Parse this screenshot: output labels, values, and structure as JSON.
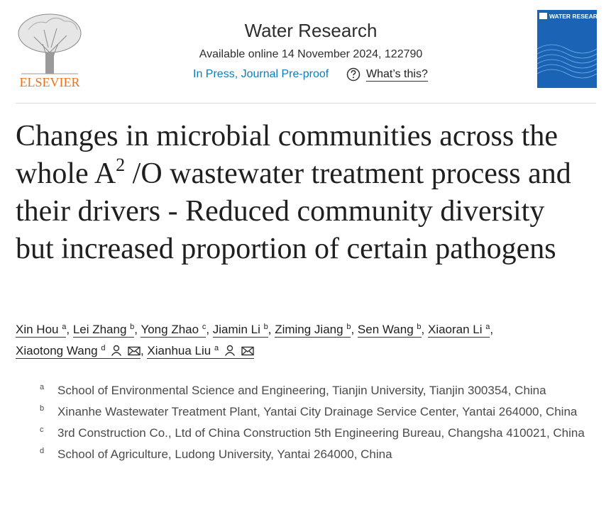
{
  "header": {
    "publisher": "ELSEVIER",
    "journal": "Water Research",
    "availability": "Available online 14 November 2024, 122790",
    "status": "In Press, Journal Pre-proof",
    "help": "What’s this?",
    "cover_title": "WATER RESEARCH"
  },
  "title": {
    "before": "Changes in microbial communities across the whole A",
    "superscript": "2",
    "after": " /O wastewater treatment process and their drivers - Reduced community diversity but increased proportion of certain pathogens"
  },
  "author_separator": ",",
  "authors": [
    {
      "name": "Xin Hou",
      "affiliation": "a"
    },
    {
      "name": "Lei Zhang",
      "affiliation": "b"
    },
    {
      "name": "Yong Zhao",
      "affiliation": "c"
    },
    {
      "name": "Jiamin Li",
      "affiliation": "b"
    },
    {
      "name": "Ziming Jiang",
      "affiliation": "b"
    },
    {
      "name": "Sen Wang",
      "affiliation": "b"
    },
    {
      "name": "Xiaoran Li",
      "affiliation": "a"
    },
    {
      "name": "Xiaotong Wang",
      "affiliation": "d"
    },
    {
      "name": "Xianhua Liu",
      "affiliation": "a"
    }
  ],
  "affiliations": [
    {
      "label": "a",
      "text": "School of Environmental Science and Engineering, Tianjin University, Tianjin 300354, China"
    },
    {
      "label": "b",
      "text": "Xinanhe Wastewater Treatment Plant, Yantai City Drainage Service Center, Yantai 264000, China"
    },
    {
      "label": "c",
      "text": "3rd Construction Co., Ltd of China Construction 5th Engineering Bureau, Changsha 410021, China"
    },
    {
      "label": "d",
      "text": "School of Agriculture, Ludong University, Yantai 264000, China"
    }
  ]
}
